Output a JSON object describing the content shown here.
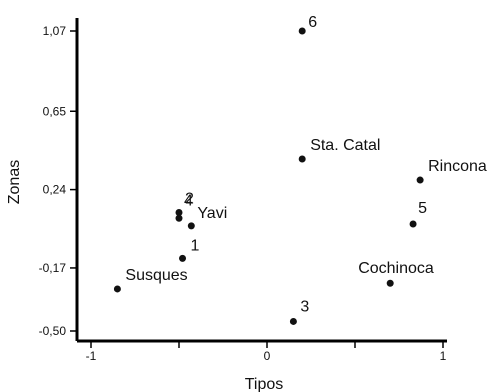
{
  "chart_data": {
    "type": "scatter",
    "xlabel": "Tipos",
    "ylabel": "Zonas",
    "xlim": [
      -1,
      1
    ],
    "ylim": [
      -0.5,
      1.07
    ],
    "x_ticks": [
      {
        "value": -1,
        "label": "-1"
      },
      {
        "value": -0.5,
        "label": ""
      },
      {
        "value": 0,
        "label": "0"
      },
      {
        "value": 0.5,
        "label": ""
      },
      {
        "value": 1,
        "label": "1"
      }
    ],
    "y_ticks": [
      {
        "value": -0.5,
        "label": "-0,50"
      },
      {
        "value": -0.17,
        "label": "-0,17"
      },
      {
        "value": 0.24,
        "label": "0,24"
      },
      {
        "value": 0.65,
        "label": "0,65"
      },
      {
        "value": 1.07,
        "label": "1,07"
      }
    ],
    "points": [
      {
        "label": "6",
        "x": 0.2,
        "y": 1.07
      },
      {
        "label": "Sta. Catal",
        "x": 0.2,
        "y": 0.4
      },
      {
        "label": "Rinconada",
        "x": 0.87,
        "y": 0.29
      },
      {
        "label": "2",
        "x": -0.5,
        "y": 0.12
      },
      {
        "label": "4",
        "x": -0.5,
        "y": 0.09
      },
      {
        "label": "Yavi",
        "x": -0.43,
        "y": 0.05
      },
      {
        "label": "5",
        "x": 0.83,
        "y": 0.06
      },
      {
        "label": "1",
        "x": -0.48,
        "y": -0.12
      },
      {
        "label": "Cochinoca",
        "x": 0.7,
        "y": -0.25
      },
      {
        "label": "Susques",
        "x": -0.85,
        "y": -0.28
      },
      {
        "label": "3",
        "x": 0.15,
        "y": -0.45
      }
    ]
  }
}
